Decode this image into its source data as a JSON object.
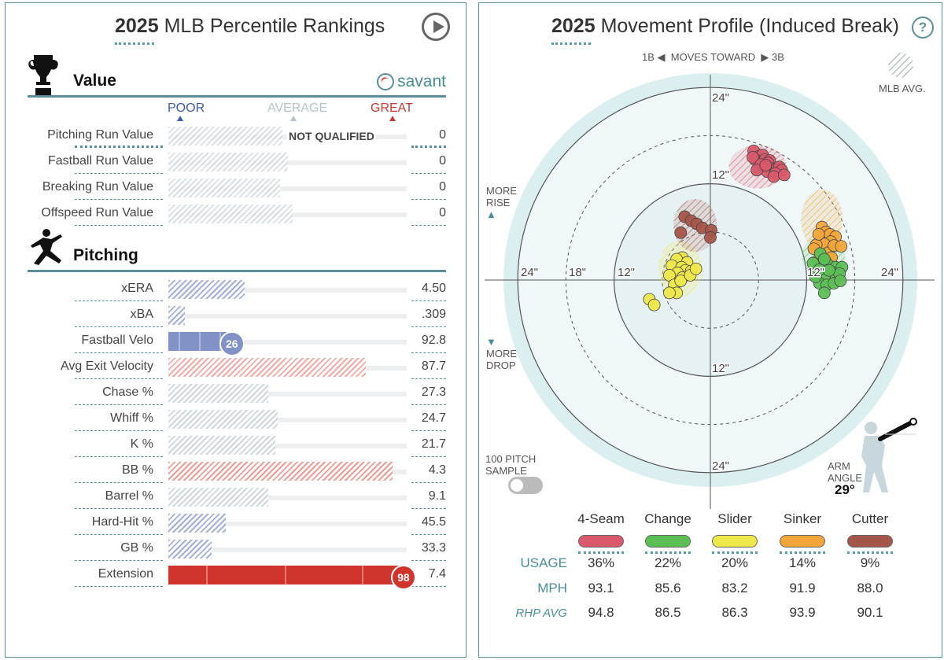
{
  "left": {
    "title_bold": "2025",
    "title_rest": " MLB Percentile Rankings",
    "value_section": "Value",
    "pitching_section": "Pitching",
    "savant": "savant",
    "scale": {
      "poor": "POOR",
      "average": "AVERAGE",
      "great": "GREAT"
    },
    "not_qualified": "NOT QUALIFIED",
    "value_rows": [
      {
        "name": "Pitching Run Value",
        "value": "0",
        "percentile": 48
      },
      {
        "name": "Fastball Run Value",
        "value": "0",
        "percentile": 50
      },
      {
        "name": "Breaking Run Value",
        "value": "0",
        "percentile": 47
      },
      {
        "name": "Offspeed Run Value",
        "value": "0",
        "percentile": 52
      }
    ],
    "pitching_rows": [
      {
        "name": "xERA",
        "value": "4.50",
        "percentile": 32,
        "color": "#9aa6d6",
        "hatched": true
      },
      {
        "name": "xBA",
        "value": ".309",
        "percentile": 7,
        "color": "#9aa6d6",
        "hatched": true
      },
      {
        "name": "Fastball Velo",
        "value": "92.8",
        "percentile": 26,
        "color": "#8193c6",
        "hatched": false,
        "badge": "26"
      },
      {
        "name": "Avg Exit Velocity",
        "value": "87.7",
        "percentile": 83,
        "color": "#eba39b",
        "hatched": true
      },
      {
        "name": "Chase %",
        "value": "27.3",
        "percentile": 42,
        "color": "#c9d2da",
        "hatched": true
      },
      {
        "name": "Whiff %",
        "value": "24.7",
        "percentile": 46,
        "color": "#c9d2da",
        "hatched": true
      },
      {
        "name": "K %",
        "value": "21.7",
        "percentile": 45,
        "color": "#c9d2da",
        "hatched": true
      },
      {
        "name": "BB %",
        "value": "4.3",
        "percentile": 94,
        "color": "#e5928a",
        "hatched": true
      },
      {
        "name": "Barrel %",
        "value": "9.1",
        "percentile": 42,
        "color": "#c9d2da",
        "hatched": true
      },
      {
        "name": "Hard-Hit %",
        "value": "45.5",
        "percentile": 24,
        "color": "#9aa6d6",
        "hatched": true
      },
      {
        "name": "GB %",
        "value": "33.3",
        "percentile": 18,
        "color": "#9aa6d6",
        "hatched": true
      },
      {
        "name": "Extension",
        "value": "7.4",
        "percentile": 98,
        "color": "#d0342c",
        "hatched": false,
        "badge": "98"
      }
    ]
  },
  "right": {
    "title_bold": "2025",
    "title_rest": " Movement Profile (Induced Break)",
    "help": "?",
    "direction": {
      "left": "1B",
      "middle": "MOVES TOWARD",
      "right": "3B"
    },
    "mlb_avg": "MLB AVG.",
    "more_rise": [
      "MORE",
      "RISE"
    ],
    "more_drop": [
      "MORE",
      "DROP"
    ],
    "ring_labels": [
      "24\"",
      "18\"",
      "12\"",
      "12\"",
      "24\"",
      "24\"",
      "12\"",
      "12\"",
      "24\""
    ],
    "sample_toggle": [
      "100 PITCH",
      "SAMPLE"
    ],
    "arm_angle_label": [
      "ARM",
      "ANGLE"
    ],
    "arm_angle_value": "29°",
    "table": {
      "row_labels": {
        "usage": "USAGE",
        "mph": "MPH",
        "rhp": "RHP AVG"
      },
      "pitches": [
        {
          "name": "4-Seam",
          "color": "#d9586a",
          "usage": "36%",
          "mph": "93.1",
          "rhp": "94.8"
        },
        {
          "name": "Change",
          "color": "#5cbf55",
          "usage": "22%",
          "mph": "85.6",
          "rhp": "86.5"
        },
        {
          "name": "Slider",
          "color": "#eee84a",
          "usage": "20%",
          "mph": "83.2",
          "rhp": "86.3"
        },
        {
          "name": "Sinker",
          "color": "#f2a63a",
          "usage": "14%",
          "mph": "91.9",
          "rhp": "93.9"
        },
        {
          "name": "Cutter",
          "color": "#a5564a",
          "usage": "9%",
          "mph": "88.0",
          "rhp": "90.1"
        }
      ]
    }
  },
  "chart_data": {
    "type": "scatter",
    "title": "2025 Movement Profile (Induced Break)",
    "xlabel": "1B ◀ MOVES TOWARD ▶ 3B",
    "ylabel": "MORE RISE / MORE DROP",
    "xlim": [
      -24,
      24
    ],
    "ylim": [
      -24,
      24
    ],
    "series": [
      {
        "name": "4-Seam",
        "color": "#d9586a",
        "avg": {
          "x": 5.9,
          "y": 14.1,
          "rx": 3.6,
          "ry": 2.7
        },
        "points": [
          [
            5.4,
            16.1
          ],
          [
            6.0,
            15.4
          ],
          [
            6.5,
            15.6
          ],
          [
            5.6,
            15.0
          ],
          [
            6.8,
            15.0
          ],
          [
            5.3,
            15.3
          ],
          [
            7.4,
            14.9
          ],
          [
            7.2,
            14.6
          ],
          [
            6.6,
            14.1
          ],
          [
            7.6,
            13.9
          ],
          [
            7.1,
            13.5
          ],
          [
            8.3,
            13.9
          ],
          [
            8.6,
            14.1
          ],
          [
            8.9,
            13.7
          ],
          [
            8.1,
            13.3
          ],
          [
            7.9,
            12.9
          ],
          [
            9.2,
            13.1
          ],
          [
            6.3,
            14.4
          ],
          [
            5.8,
            13.7
          ],
          [
            6.9,
            14.3
          ]
        ]
      },
      {
        "name": "Sinker",
        "color": "#f2a63a",
        "avg": {
          "x": 13.9,
          "y": 7.5,
          "rx": 2.6,
          "ry": 3.8
        },
        "points": [
          [
            13.9,
            6.6
          ],
          [
            14.4,
            6.0
          ],
          [
            14.9,
            5.7
          ],
          [
            15.6,
            5.4
          ],
          [
            15.0,
            4.8
          ],
          [
            14.2,
            4.5
          ],
          [
            13.2,
            4.4
          ],
          [
            13.5,
            5.7
          ],
          [
            12.9,
            3.9
          ],
          [
            14.7,
            3.4
          ],
          [
            15.4,
            4.3
          ],
          [
            16.3,
            4.2
          ],
          [
            13.4,
            2.4
          ],
          [
            15.1,
            2.8
          ]
        ]
      },
      {
        "name": "Change",
        "color": "#5cbf55",
        "avg": {
          "x": 14.1,
          "y": 3.0,
          "rx": 2.7,
          "ry": 2.6
        },
        "points": [
          [
            13.9,
            1.8
          ],
          [
            14.6,
            2.0
          ],
          [
            15.6,
            1.6
          ],
          [
            15.3,
            0.9
          ],
          [
            14.2,
            0.4
          ],
          [
            13.6,
            -0.4
          ],
          [
            14.5,
            -0.6
          ],
          [
            15.4,
            -0.4
          ],
          [
            16.4,
            1.6
          ],
          [
            16.1,
            0.8
          ],
          [
            13.1,
            0.4
          ],
          [
            12.8,
            2.1
          ],
          [
            13.6,
            1.3
          ],
          [
            14.2,
            -1.6
          ],
          [
            14.8,
            1.2
          ],
          [
            13.7,
            3.3
          ],
          [
            14.2,
            2.6
          ],
          [
            16.2,
            -0.1
          ]
        ]
      },
      {
        "name": "Slider",
        "color": "#eee84a",
        "avg": {
          "x": -3.8,
          "y": 1.4,
          "rx": 2.7,
          "ry": 3.5
        },
        "points": [
          [
            -3.5,
            2.8
          ],
          [
            -4.2,
            2.6
          ],
          [
            -2.9,
            2.2
          ],
          [
            -4.8,
            1.8
          ],
          [
            -3.6,
            1.6
          ],
          [
            -3.1,
            1.2
          ],
          [
            -2.4,
            1.1
          ],
          [
            -4.1,
            0.9
          ],
          [
            -5.1,
            0.6
          ],
          [
            -3.5,
            0.3
          ],
          [
            -4.5,
            -0.6
          ],
          [
            -3.7,
            -0.1
          ],
          [
            -2.5,
            0.6
          ],
          [
            -1.8,
            1.4
          ],
          [
            -4.2,
            -1.6
          ],
          [
            -5.1,
            -1.6
          ],
          [
            -7.6,
            -2.4
          ],
          [
            -7.0,
            -3.1
          ]
        ]
      },
      {
        "name": "Cutter",
        "color": "#a5564a",
        "avg": {
          "x": -1.9,
          "y": 6.8,
          "rx": 2.7,
          "ry": 3.3
        },
        "points": [
          [
            -3.2,
            7.9
          ],
          [
            -2.4,
            7.4
          ],
          [
            -1.7,
            7.0
          ],
          [
            -1.0,
            6.5
          ],
          [
            0.1,
            6.2
          ],
          [
            0.0,
            5.3
          ],
          [
            -3.7,
            5.9
          ]
        ]
      }
    ],
    "arm_angle_deg": 29
  }
}
